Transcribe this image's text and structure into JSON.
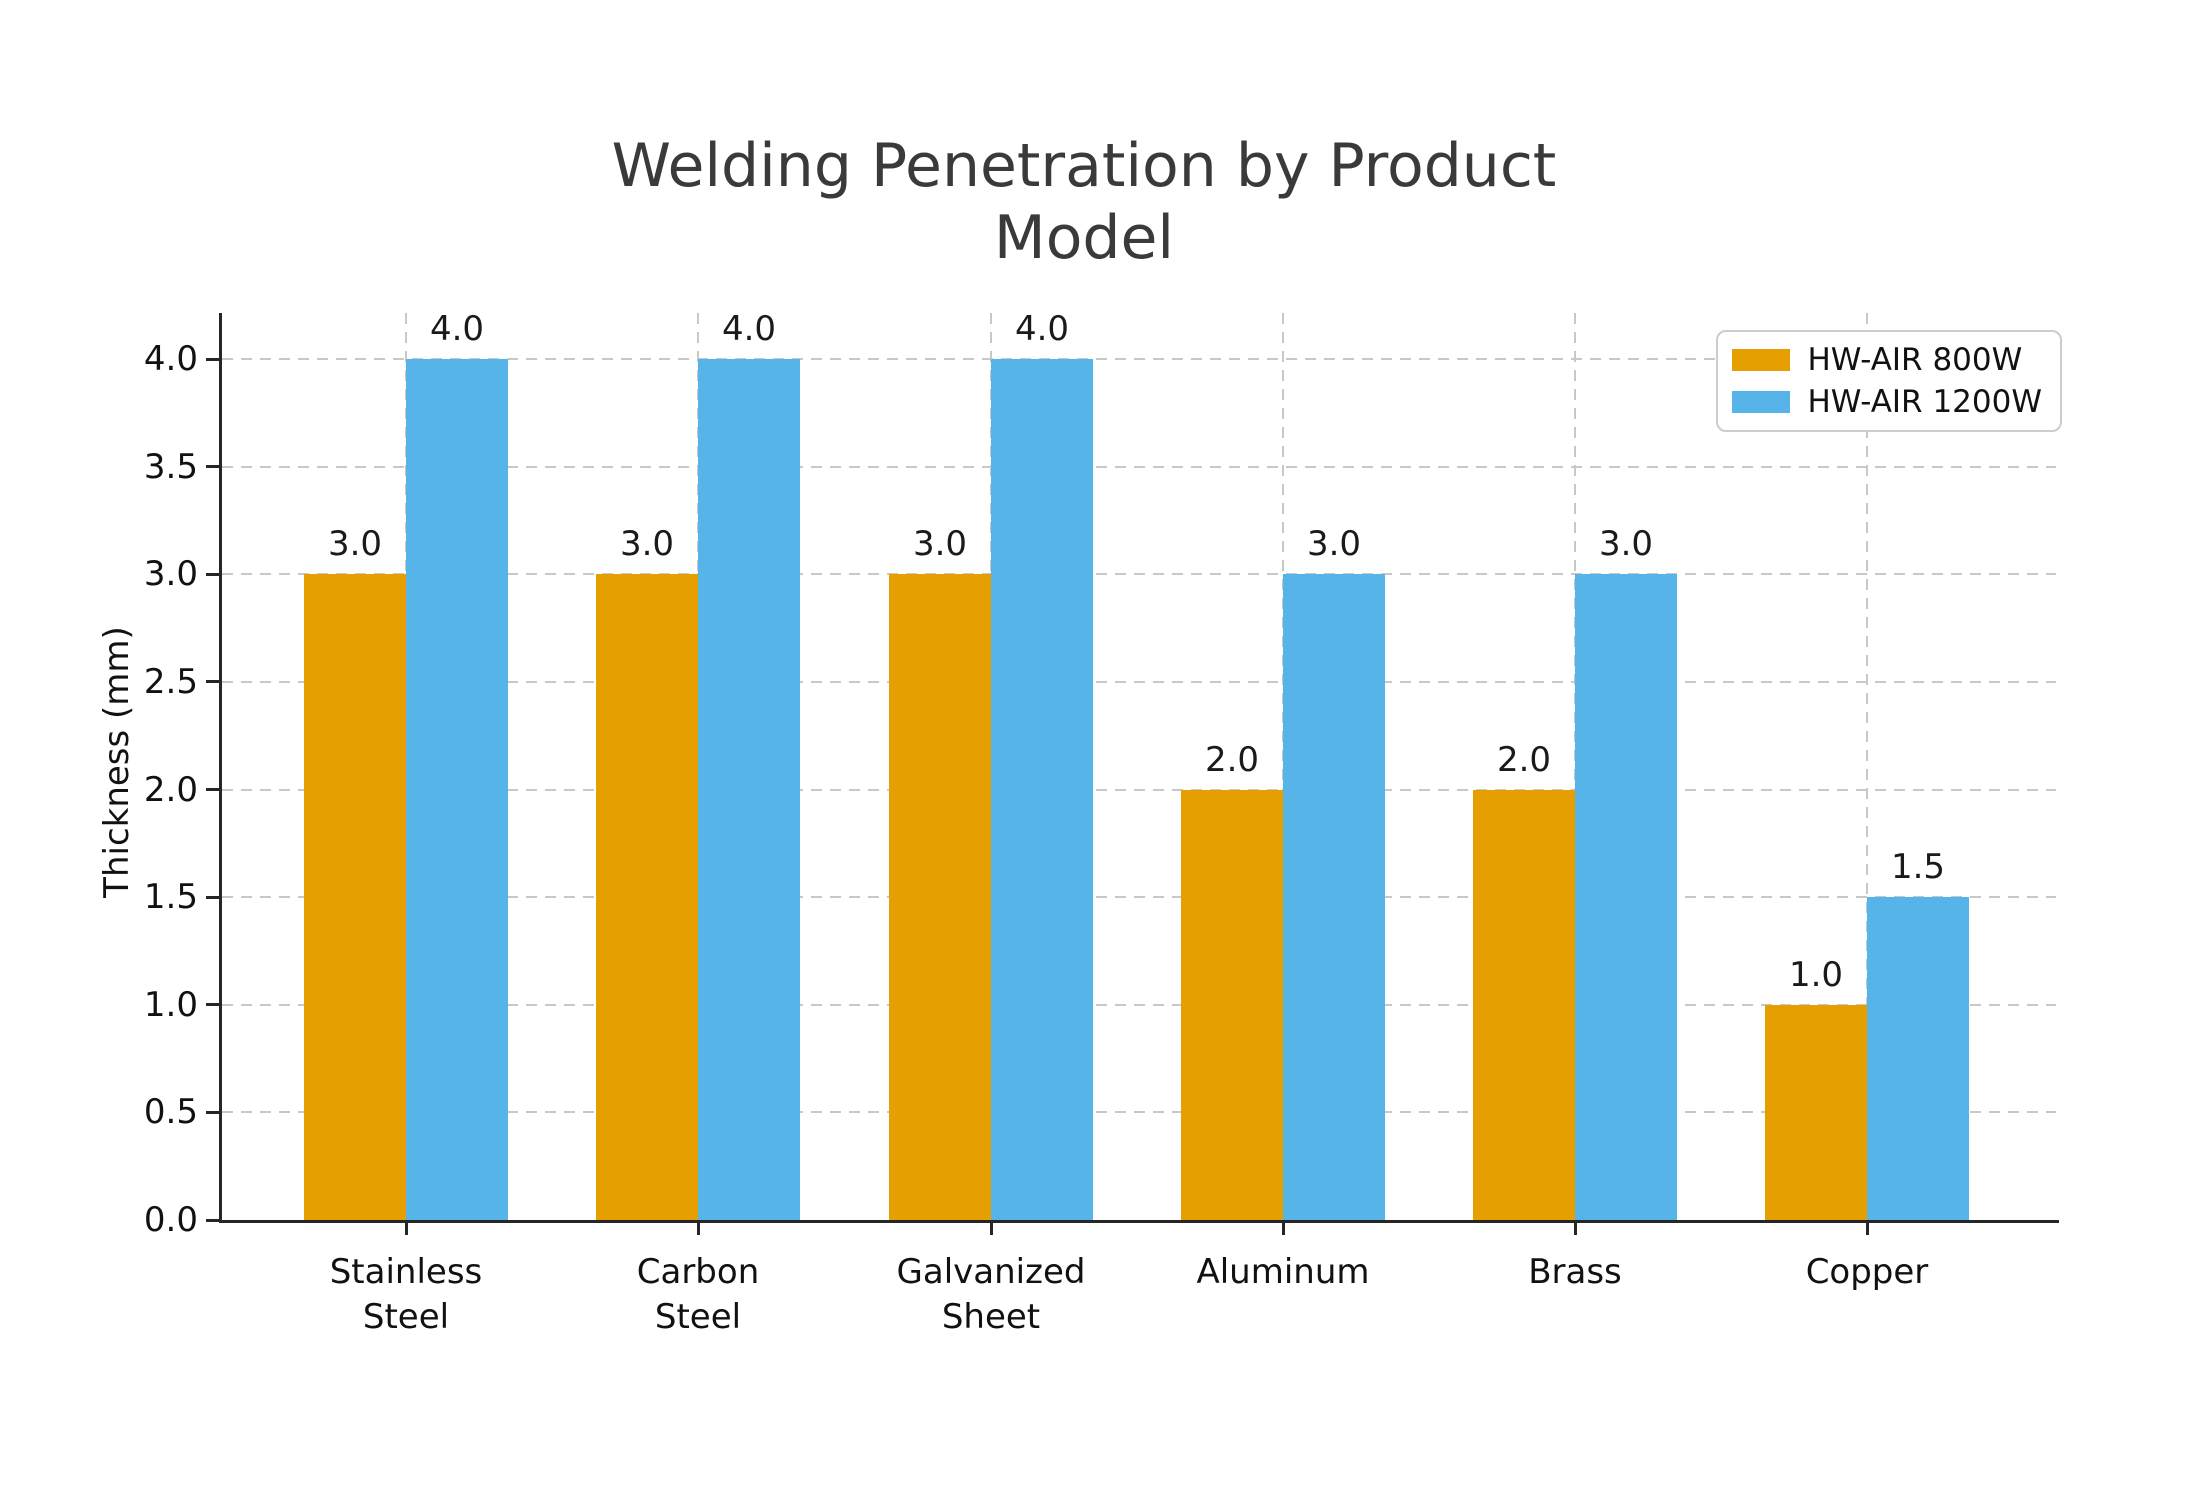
{
  "chart_data": {
    "type": "bar",
    "title": "Welding Penetration by Product Model",
    "ylabel": "Thickness (mm)",
    "xlabel": "",
    "categories": [
      "Stainless\nSteel",
      "Carbon\nSteel",
      "Galvanized\nSheet",
      "Aluminum",
      "Brass",
      "Copper"
    ],
    "series": [
      {
        "name": "HW-AIR 800W",
        "color": "#E69F00",
        "values": [
          3.0,
          3.0,
          3.0,
          2.0,
          2.0,
          1.0
        ],
        "value_labels": [
          "3.0",
          "3.0",
          "3.0",
          "2.0",
          "2.0",
          "1.0"
        ]
      },
      {
        "name": "HW-AIR 1200W",
        "color": "#56B4E9",
        "values": [
          4.0,
          4.0,
          4.0,
          3.0,
          3.0,
          1.5
        ],
        "value_labels": [
          "4.0",
          "4.0",
          "4.0",
          "3.0",
          "3.0",
          "1.5"
        ]
      }
    ],
    "ylim": [
      0,
      4.2
    ],
    "yticks": [
      0.0,
      0.5,
      1.0,
      1.5,
      2.0,
      2.5,
      3.0,
      3.5,
      4.0
    ],
    "ytick_labels": [
      "0.0",
      "0.5",
      "1.0",
      "1.5",
      "2.0",
      "2.5",
      "3.0",
      "3.5",
      "4.0"
    ],
    "grid": "dashed horizontal and vertical",
    "legend_position": "upper right",
    "style_colors": {
      "grid": "#c8c8c8",
      "spine": "#262626",
      "title_text": "#3a3a3a",
      "tick_text": "#111111",
      "legend_border": "#cccccc",
      "background": "#ffffff"
    }
  }
}
